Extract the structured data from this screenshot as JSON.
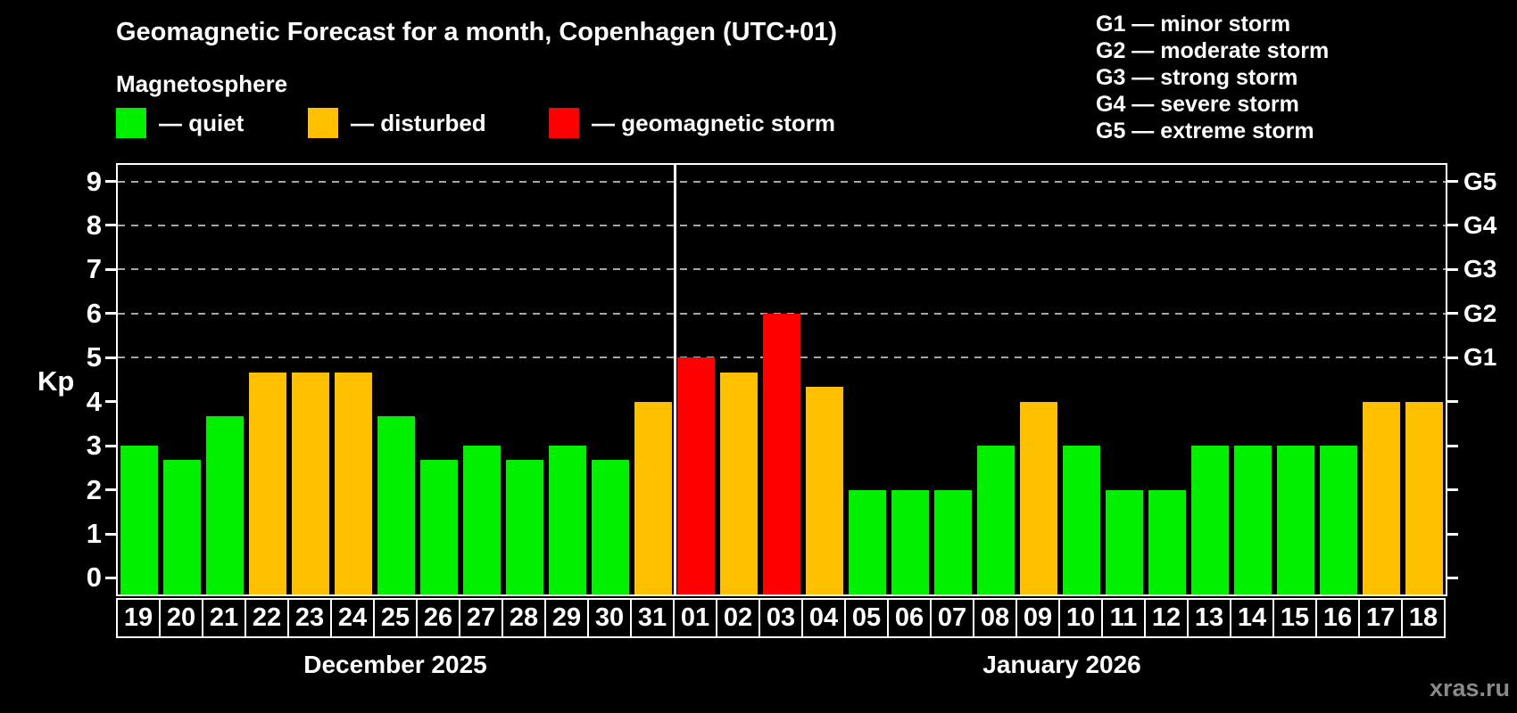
{
  "header": {
    "title": "Geomagnetic Forecast for a month, Copenhagen (UTC+01)",
    "subtitle": "Magnetosphere"
  },
  "legend": {
    "items": [
      {
        "key": "quiet",
        "label": "— quiet",
        "color": "#00f000"
      },
      {
        "key": "disturbed",
        "label": "— disturbed",
        "color": "#ffc000"
      },
      {
        "key": "storm",
        "label": "— geomagnetic storm",
        "color": "#ff0000"
      }
    ]
  },
  "g_scale": {
    "lines": [
      "G1 — minor storm",
      "G2 — moderate storm",
      "G3 — strong storm",
      "G4 — severe storm",
      "G5 — extreme storm"
    ]
  },
  "chart_data": {
    "type": "bar",
    "title": "Geomagnetic Forecast for a month, Copenhagen (UTC+01)",
    "xlabel": "",
    "ylabel": "Kp",
    "ylim": [
      -0.375,
      9.375
    ],
    "y_ticks": [
      0,
      1,
      2,
      3,
      4,
      5,
      6,
      7,
      8,
      9
    ],
    "gridlines_at": [
      5,
      6,
      7,
      8,
      9
    ],
    "grid_style": "dashed horizontal gray lines at storm levels G1–G5",
    "legend_position": "top-left",
    "right_axis": [
      {
        "kp": 5,
        "label": "G1"
      },
      {
        "kp": 6,
        "label": "G2"
      },
      {
        "kp": 7,
        "label": "G3"
      },
      {
        "kp": 8,
        "label": "G4"
      },
      {
        "kp": 9,
        "label": "G5"
      }
    ],
    "months": [
      {
        "label": "December 2025",
        "days": 13
      },
      {
        "label": "January 2026",
        "days": 18
      }
    ],
    "status_colors": {
      "quiet": "#00f000",
      "disturbed": "#ffc000",
      "storm": "#ff0000"
    },
    "bars": [
      {
        "date": "19",
        "kp": 3.0,
        "status": "quiet"
      },
      {
        "date": "20",
        "kp": 2.67,
        "status": "quiet"
      },
      {
        "date": "21",
        "kp": 3.67,
        "status": "quiet"
      },
      {
        "date": "22",
        "kp": 4.67,
        "status": "disturbed"
      },
      {
        "date": "23",
        "kp": 4.67,
        "status": "disturbed"
      },
      {
        "date": "24",
        "kp": 4.67,
        "status": "disturbed"
      },
      {
        "date": "25",
        "kp": 3.67,
        "status": "quiet"
      },
      {
        "date": "26",
        "kp": 2.67,
        "status": "quiet"
      },
      {
        "date": "27",
        "kp": 3.0,
        "status": "quiet"
      },
      {
        "date": "28",
        "kp": 2.67,
        "status": "quiet"
      },
      {
        "date": "29",
        "kp": 3.0,
        "status": "quiet"
      },
      {
        "date": "30",
        "kp": 2.67,
        "status": "quiet"
      },
      {
        "date": "31",
        "kp": 4.0,
        "status": "disturbed"
      },
      {
        "date": "01",
        "kp": 5.0,
        "status": "storm"
      },
      {
        "date": "02",
        "kp": 4.67,
        "status": "disturbed"
      },
      {
        "date": "03",
        "kp": 6.0,
        "status": "storm"
      },
      {
        "date": "04",
        "kp": 4.33,
        "status": "disturbed"
      },
      {
        "date": "05",
        "kp": 2.0,
        "status": "quiet"
      },
      {
        "date": "06",
        "kp": 2.0,
        "status": "quiet"
      },
      {
        "date": "07",
        "kp": 2.0,
        "status": "quiet"
      },
      {
        "date": "08",
        "kp": 3.0,
        "status": "quiet"
      },
      {
        "date": "09",
        "kp": 4.0,
        "status": "disturbed"
      },
      {
        "date": "10",
        "kp": 3.0,
        "status": "quiet"
      },
      {
        "date": "11",
        "kp": 2.0,
        "status": "quiet"
      },
      {
        "date": "12",
        "kp": 2.0,
        "status": "quiet"
      },
      {
        "date": "13",
        "kp": 3.0,
        "status": "quiet"
      },
      {
        "date": "14",
        "kp": 3.0,
        "status": "quiet"
      },
      {
        "date": "15",
        "kp": 3.0,
        "status": "quiet"
      },
      {
        "date": "16",
        "kp": 3.0,
        "status": "quiet"
      },
      {
        "date": "17",
        "kp": 4.0,
        "status": "disturbed"
      },
      {
        "date": "18",
        "kp": 4.0,
        "status": "disturbed"
      }
    ]
  },
  "watermark": "xras.ru"
}
